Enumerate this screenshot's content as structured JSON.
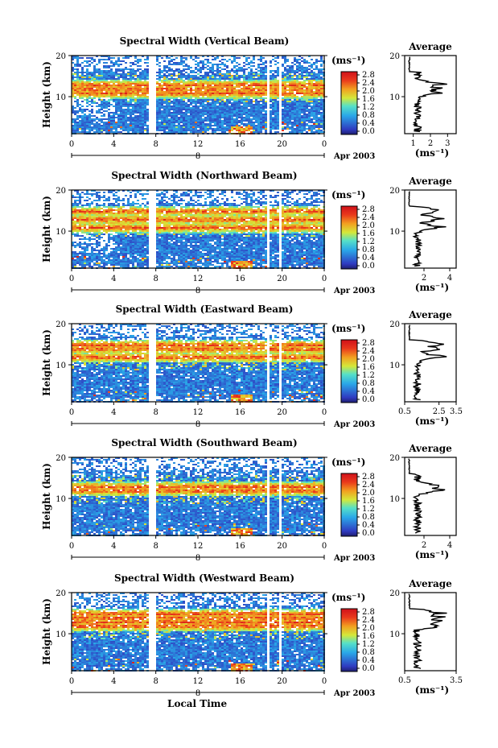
{
  "chart_data": [
    {
      "type": "heatmap",
      "title": "Spectral Width (Vertical Beam)",
      "ylabel": "Height (km)",
      "y_ticks": [
        "20",
        "10"
      ],
      "x_ticks": [
        "0",
        "4",
        "8",
        "12",
        "16",
        "20",
        "0"
      ],
      "x_sub_label": "8",
      "date_label": "Apr 2003",
      "xlim": [
        0,
        24
      ],
      "ylim": [
        1,
        20
      ],
      "gaps_hours": [
        [
          7.3,
          7.8
        ],
        [
          18.5,
          18.8
        ],
        [
          19.6,
          19.9
        ]
      ],
      "colorbar": {
        "unit": "(ms⁻¹)",
        "ticks": [
          "2.8",
          "2.4",
          "2.0",
          "1.6",
          "1.2",
          "0.8",
          "0.4",
          "0.0"
        ],
        "range": [
          0,
          2.8
        ]
      },
      "profile": {
        "title": "Average",
        "x_ticks": [
          "1",
          "2",
          "3"
        ],
        "xlim": [
          0.5,
          3.5
        ],
        "xlabel": "(ms⁻¹)",
        "y_ticks": [
          "20",
          "10"
        ],
        "ylim": [
          1,
          20
        ],
        "peak_heights_km": [
          13,
          12,
          11
        ]
      }
    },
    {
      "type": "heatmap",
      "title": "Spectral Width (Northward Beam)",
      "ylabel": "Height (km)",
      "y_ticks": [
        "20",
        "10"
      ],
      "x_ticks": [
        "0",
        "4",
        "8",
        "12",
        "16",
        "20",
        "0"
      ],
      "x_sub_label": "8",
      "date_label": "Apr 2003",
      "xlim": [
        0,
        24
      ],
      "ylim": [
        1,
        20
      ],
      "gaps_hours": [
        [
          7.3,
          7.8
        ],
        [
          18.5,
          18.8
        ],
        [
          19.6,
          19.9
        ]
      ],
      "colorbar": {
        "unit": "(ms⁻¹)",
        "ticks": [
          "2.8",
          "2.4",
          "2.0",
          "1.6",
          "1.2",
          "0.8",
          "0.4",
          "0.0"
        ],
        "range": [
          0,
          2.8
        ]
      },
      "profile": {
        "title": "Average",
        "x_ticks": [
          "2",
          "4"
        ],
        "xlim": [
          0.5,
          4.5
        ],
        "xlabel": "(ms⁻¹)",
        "y_ticks": [
          "20",
          "10"
        ],
        "ylim": [
          1,
          20
        ],
        "peak_heights_km": [
          15,
          13,
          11
        ]
      }
    },
    {
      "type": "heatmap",
      "title": "Spectral Width (Eastward Beam)",
      "ylabel": "Height (km)",
      "y_ticks": [
        "20",
        "10"
      ],
      "x_ticks": [
        "0",
        "4",
        "8",
        "12",
        "16",
        "20",
        "0"
      ],
      "x_sub_label": "8",
      "date_label": "Apr 2003",
      "xlim": [
        0,
        24
      ],
      "ylim": [
        1,
        20
      ],
      "gaps_hours": [
        [
          7.3,
          7.8
        ],
        [
          18.5,
          18.8
        ],
        [
          19.6,
          19.9
        ]
      ],
      "colorbar": {
        "unit": "(ms⁻¹)",
        "ticks": [
          "2.8",
          "2.4",
          "2.0",
          "1.6",
          "1.2",
          "0.8",
          "0.4",
          "0.0"
        ],
        "range": [
          0,
          2.8
        ]
      },
      "profile": {
        "title": "Average",
        "x_ticks": [
          "0.5",
          "2.5",
          "3.5"
        ],
        "xlim": [
          0.5,
          3.5
        ],
        "xlabel": "(ms⁻¹)",
        "y_ticks": [
          "20",
          "10"
        ],
        "ylim": [
          1,
          20
        ],
        "peak_heights_km": [
          15,
          14,
          12
        ]
      }
    },
    {
      "type": "heatmap",
      "title": "Spectral Width (Southward Beam)",
      "ylabel": "Height (km)",
      "y_ticks": [
        "20",
        "10"
      ],
      "x_ticks": [
        "0",
        "4",
        "8",
        "12",
        "16",
        "20",
        "0"
      ],
      "x_sub_label": "8",
      "date_label": "Apr 2003",
      "xlim": [
        0,
        24
      ],
      "ylim": [
        1,
        20
      ],
      "gaps_hours": [
        [
          7.3,
          7.8
        ],
        [
          18.5,
          18.8
        ],
        [
          19.6,
          19.9
        ]
      ],
      "colorbar": {
        "unit": "(ms⁻¹)",
        "ticks": [
          "2.8",
          "2.4",
          "2.0",
          "1.6",
          "1.2",
          "0.8",
          "0.4",
          "0.0"
        ],
        "range": [
          0,
          2.8
        ]
      },
      "profile": {
        "title": "Average",
        "x_ticks": [
          "2",
          "4"
        ],
        "xlim": [
          0.5,
          4.5
        ],
        "xlabel": "(ms⁻¹)",
        "y_ticks": [
          "20",
          "10"
        ],
        "ylim": [
          1,
          20
        ],
        "peak_heights_km": [
          13,
          12
        ]
      }
    },
    {
      "type": "heatmap",
      "title": "Spectral Width (Westward Beam)",
      "ylabel": "Height (km)",
      "y_ticks": [
        "20",
        "10"
      ],
      "x_ticks": [
        "0",
        "4",
        "8",
        "12",
        "16",
        "20",
        "0"
      ],
      "x_sub_label": "8",
      "date_label": "Apr 2003",
      "xlim": [
        0,
        24
      ],
      "ylim": [
        1,
        20
      ],
      "gaps_hours": [
        [
          7.3,
          7.8
        ],
        [
          18.5,
          18.8
        ],
        [
          19.6,
          19.9
        ]
      ],
      "colorbar": {
        "unit": "(ms⁻¹)",
        "ticks": [
          "2.8",
          "2.4",
          "2.0",
          "1.6",
          "1.2",
          "0.8",
          "0.4",
          "0.0"
        ],
        "range": [
          0,
          2.8
        ]
      },
      "profile": {
        "title": "Average",
        "x_ticks": [
          "0.5",
          "3.5"
        ],
        "xlim": [
          0.5,
          3.5
        ],
        "xlabel": "(ms⁻¹)",
        "y_ticks": [
          "20",
          "10"
        ],
        "ylim": [
          1,
          20
        ],
        "peak_heights_km": [
          15,
          14,
          13,
          12
        ]
      }
    }
  ],
  "footer": {
    "xlabel": "Local Time"
  },
  "colors": {
    "low": "#1a2c9a",
    "mid": "#1fb8e8",
    "high": "#e8201a",
    "cbar_bottom": "#1e1e6e"
  }
}
